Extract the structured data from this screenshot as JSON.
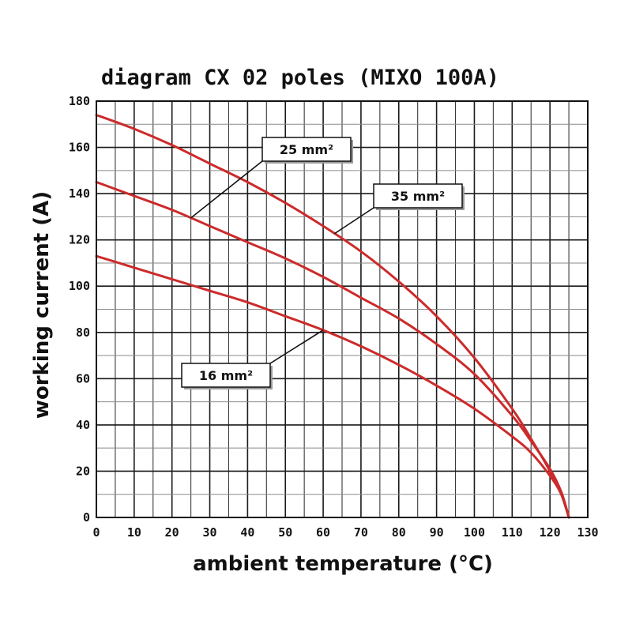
{
  "chart_data": {
    "type": "line",
    "title": "diagram CX 02 poles (MIXO 100A)",
    "xlabel": "ambient temperature (°C)",
    "ylabel": "working current (A)",
    "xlim": [
      0,
      130
    ],
    "ylim": [
      0,
      180
    ],
    "x_ticks": [
      0,
      10,
      20,
      30,
      40,
      50,
      60,
      70,
      80,
      90,
      100,
      110,
      120,
      130
    ],
    "y_ticks": [
      0,
      20,
      40,
      60,
      80,
      100,
      120,
      140,
      160,
      180
    ],
    "grid": true,
    "minor_grid_step": {
      "x": 5,
      "y": 10
    },
    "line_color": "#cc2b2b",
    "series": [
      {
        "name": "35 mm²",
        "x": [
          0,
          10,
          20,
          30,
          40,
          50,
          60,
          70,
          80,
          90,
          100,
          110,
          115,
          120,
          123,
          125
        ],
        "values": [
          174,
          168,
          161,
          153,
          145,
          136,
          126,
          115,
          102,
          87,
          69,
          47,
          34,
          20,
          10,
          0
        ]
      },
      {
        "name": "25 mm²",
        "x": [
          0,
          10,
          20,
          30,
          40,
          50,
          60,
          70,
          80,
          90,
          100,
          110,
          115,
          120,
          123,
          125
        ],
        "values": [
          145,
          139,
          133,
          126,
          119,
          112,
          104,
          95,
          86,
          75,
          62,
          44,
          33,
          21,
          11,
          0
        ]
      },
      {
        "name": "16 mm²",
        "x": [
          0,
          10,
          20,
          30,
          40,
          50,
          60,
          70,
          80,
          90,
          100,
          110,
          115,
          120,
          123,
          125
        ],
        "values": [
          113,
          108,
          103,
          98,
          93,
          87,
          81,
          74,
          66,
          57,
          47,
          35,
          28,
          18,
          10,
          0
        ]
      }
    ],
    "callouts": [
      {
        "text": "25 mm²",
        "target_series": "25 mm²",
        "target_x": 25
      },
      {
        "text": "35 mm²",
        "target_series": "35 mm²",
        "target_x": 63
      },
      {
        "text": "16 mm²",
        "target_series": "16 mm²",
        "target_x": 60
      }
    ]
  }
}
